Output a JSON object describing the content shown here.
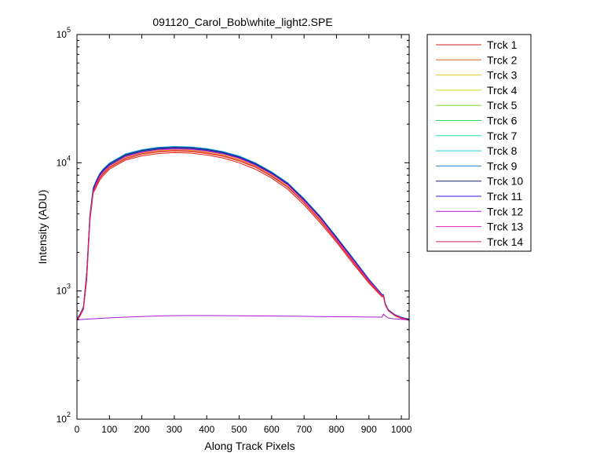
{
  "chart_data": {
    "type": "line",
    "title": "091120_Carol_Bob\\white_light2.SPE",
    "xlabel": "Along Track Pixels",
    "ylabel": "Intensity (ADU)",
    "xlim": [
      0,
      1024
    ],
    "ylim": [
      100,
      100000
    ],
    "yscale": "log",
    "x_ticks": [
      0,
      100,
      200,
      300,
      400,
      500,
      600,
      700,
      800,
      900,
      1000
    ],
    "x_tick_labels": [
      "0",
      "100",
      "200",
      "300",
      "400",
      "500",
      "600",
      "700",
      "800",
      "900",
      "1000"
    ],
    "y_ticks": [
      100,
      1000,
      10000,
      100000
    ],
    "y_tick_labels": [
      {
        "base": "10",
        "exp": "2"
      },
      {
        "base": "10",
        "exp": "3"
      },
      {
        "base": "10",
        "exp": "4"
      },
      {
        "base": "10",
        "exp": "5"
      }
    ],
    "grid": false,
    "legend_position": "outside-right",
    "x": [
      0,
      10,
      20,
      30,
      40,
      50,
      60,
      70,
      80,
      100,
      150,
      200,
      250,
      300,
      350,
      400,
      450,
      500,
      550,
      600,
      650,
      700,
      750,
      800,
      850,
      900,
      940,
      945,
      950,
      960,
      980,
      1000,
      1024
    ],
    "series": [
      {
        "name": "Trck 1",
        "color": "#e5191b",
        "values": [
          590,
          640,
          720,
          1200,
          3500,
          5800,
          6500,
          7300,
          7900,
          8900,
          10500,
          11300,
          11800,
          12000,
          11900,
          11500,
          10900,
          10000,
          8900,
          7600,
          6200,
          4700,
          3400,
          2400,
          1650,
          1150,
          900,
          900,
          780,
          700,
          640,
          610,
          590
        ]
      },
      {
        "name": "Trck 2",
        "color": "#ee6a14",
        "values": [
          595,
          645,
          725,
          1250,
          3600,
          5900,
          6600,
          7500,
          8100,
          9100,
          10700,
          11600,
          12100,
          12300,
          12200,
          11800,
          11200,
          10300,
          9200,
          7800,
          6400,
          4850,
          3500,
          2450,
          1690,
          1170,
          910,
          905,
          785,
          702,
          642,
          612,
          592
        ]
      },
      {
        "name": "Trck 3",
        "color": "#f1c21d",
        "values": [
          600,
          650,
          730,
          1300,
          3700,
          6000,
          6800,
          7700,
          8300,
          9300,
          11000,
          11900,
          12400,
          12600,
          12500,
          12100,
          11500,
          10600,
          9400,
          8000,
          6550,
          4950,
          3600,
          2500,
          1720,
          1190,
          920,
          910,
          790,
          705,
          645,
          615,
          595
        ]
      },
      {
        "name": "Trck 4",
        "color": "#d2e024",
        "values": [
          600,
          652,
          735,
          1320,
          3750,
          6050,
          6900,
          7800,
          8400,
          9400,
          11100,
          12000,
          12550,
          12750,
          12650,
          12250,
          11650,
          10750,
          9500,
          8100,
          6650,
          5000,
          3650,
          2530,
          1740,
          1200,
          925,
          915,
          792,
          706,
          646,
          616,
          596
        ]
      },
      {
        "name": "Trck 5",
        "color": "#6fd92a",
        "values": [
          602,
          655,
          740,
          1340,
          3800,
          6100,
          7000,
          7900,
          8500,
          9500,
          11250,
          12150,
          12700,
          12900,
          12800,
          12400,
          11800,
          10900,
          9650,
          8200,
          6750,
          5080,
          3700,
          2560,
          1760,
          1210,
          930,
          920,
          795,
          708,
          648,
          618,
          598
        ]
      },
      {
        "name": "Trck 6",
        "color": "#22e05c",
        "values": [
          604,
          658,
          745,
          1360,
          3850,
          6200,
          7100,
          8000,
          8650,
          9650,
          11400,
          12300,
          12850,
          13050,
          12950,
          12550,
          11950,
          11000,
          9750,
          8300,
          6820,
          5130,
          3740,
          2590,
          1780,
          1220,
          935,
          925,
          798,
          710,
          650,
          620,
          600
        ]
      },
      {
        "name": "Trck 7",
        "color": "#1ae3ae",
        "values": [
          606,
          662,
          750,
          1380,
          3900,
          6300,
          7250,
          8150,
          8800,
          9800,
          11600,
          12500,
          13050,
          13250,
          13150,
          12750,
          12100,
          11150,
          9900,
          8400,
          6900,
          5200,
          3790,
          2620,
          1800,
          1230,
          940,
          930,
          800,
          712,
          652,
          622,
          602
        ]
      },
      {
        "name": "Trck 8",
        "color": "#24d8e0",
        "values": [
          608,
          665,
          755,
          1400,
          3950,
          6400,
          7350,
          8250,
          8900,
          9950,
          11750,
          12650,
          13200,
          13400,
          13300,
          12900,
          12250,
          11300,
          10000,
          8500,
          6980,
          5260,
          3830,
          2650,
          1820,
          1240,
          945,
          935,
          802,
          714,
          654,
          624,
          604
        ]
      },
      {
        "name": "Trck 9",
        "color": "#1583d8",
        "values": [
          606,
          662,
          752,
          1390,
          3920,
          6350,
          7300,
          8200,
          8850,
          9900,
          11700,
          12600,
          13150,
          13350,
          13250,
          12850,
          12200,
          11250,
          9950,
          8450,
          6940,
          5230,
          3810,
          2640,
          1810,
          1235,
          942,
          932,
          801,
          713,
          653,
          623,
          603
        ]
      },
      {
        "name": "Trck 10",
        "color": "#14247a",
        "values": [
          604,
          660,
          748,
          1370,
          3880,
          6250,
          7200,
          8100,
          8750,
          9800,
          11550,
          12450,
          13000,
          13200,
          13100,
          12700,
          12050,
          11100,
          9850,
          8380,
          6880,
          5180,
          3780,
          2610,
          1795,
          1228,
          938,
          928,
          799,
          711,
          651,
          621,
          601
        ]
      },
      {
        "name": "Trck 11",
        "color": "#3c14d8",
        "values": [
          602,
          656,
          742,
          1350,
          3820,
          6150,
          7050,
          7950,
          8600,
          9600,
          11350,
          12250,
          12800,
          13000,
          12900,
          12500,
          11900,
          10950,
          9700,
          8250,
          6780,
          5100,
          3720,
          2570,
          1770,
          1215,
          932,
          922,
          796,
          709,
          649,
          619,
          599
        ]
      },
      {
        "name": "Trck 12",
        "color": "#a51bd8",
        "values": [
          595,
          597,
          600,
          603,
          605,
          607,
          609,
          611,
          613,
          617,
          625,
          632,
          638,
          642,
          643,
          643,
          642,
          641,
          640,
          638,
          636,
          634,
          632,
          630,
          628,
          626,
          625,
          660,
          640,
          615,
          605,
          600,
          595
        ]
      },
      {
        "name": "Trck 13",
        "color": "#dd1fc2",
        "values": [
          598,
          652,
          735,
          1330,
          3780,
          6050,
          6950,
          7850,
          8450,
          9450,
          11150,
          12050,
          12600,
          12800,
          12700,
          12300,
          11700,
          10800,
          9550,
          8150,
          6700,
          5040,
          3680,
          2545,
          1750,
          1205,
          928,
          918,
          793,
          707,
          647,
          617,
          597
        ]
      },
      {
        "name": "Trck 14",
        "color": "#df1b5e",
        "values": [
          596,
          648,
          728,
          1280,
          3650,
          5950,
          6700,
          7600,
          8200,
          9200,
          10850,
          11750,
          12250,
          12450,
          12350,
          11950,
          11350,
          10450,
          9300,
          7900,
          6480,
          4900,
          3560,
          2480,
          1705,
          1180,
          915,
          908,
          788,
          703,
          644,
          614,
          594
        ]
      }
    ]
  }
}
